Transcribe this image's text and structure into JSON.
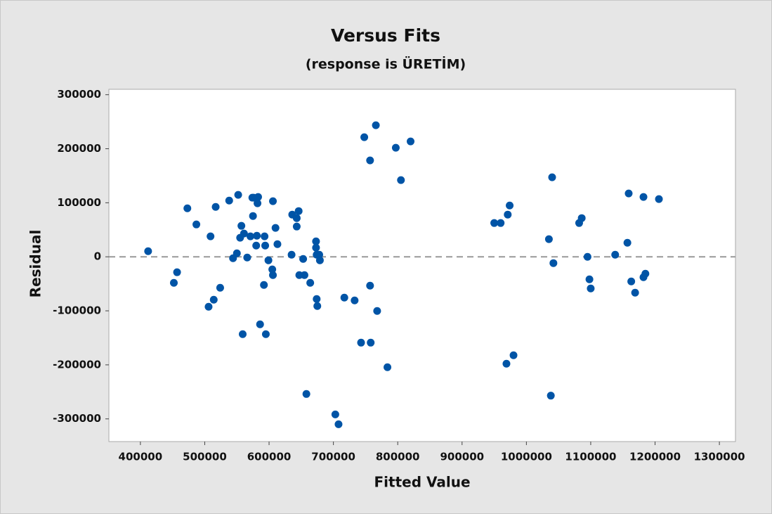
{
  "chart_data": {
    "type": "scatter",
    "title": "Versus Fits",
    "subtitle": "(response is ÜRETİM)",
    "x_label": "Fitted Value",
    "y_label": "Residual",
    "color": "#0054a6",
    "reference_line": 0,
    "xlim": [
      351000,
      1325000
    ],
    "ylim": [
      -342000,
      310000
    ],
    "xticks": [
      400000,
      500000,
      600000,
      700000,
      800000,
      900000,
      1000000,
      1100000,
      1200000,
      1300000
    ],
    "yticks": [
      -300000,
      -200000,
      -100000,
      0,
      100000,
      200000,
      300000
    ],
    "x": [
      412000,
      452000,
      457000,
      473000,
      487000,
      506000,
      509000,
      514000,
      517000,
      524000,
      538000,
      544000,
      552000,
      550000,
      555000,
      557000,
      559000,
      561000,
      566000,
      571000,
      574000,
      575000,
      576000,
      580000,
      581000,
      582000,
      583000,
      586000,
      592000,
      593000,
      594000,
      595000,
      599000,
      605000,
      606000,
      606000,
      610000,
      613000,
      635000,
      636000,
      643000,
      643000,
      646000,
      647000,
      653000,
      655000,
      658000,
      664000,
      673000,
      673000,
      674000,
      674000,
      675000,
      678000,
      679000,
      703000,
      708000,
      717000,
      733000,
      743000,
      748000,
      757000,
      757000,
      758000,
      766000,
      768000,
      784000,
      797000,
      805000,
      820000,
      950000,
      960000,
      969000,
      971000,
      974000,
      980000,
      1035000,
      1038000,
      1040000,
      1042000,
      1082000,
      1086000,
      1095000,
      1098000,
      1100000,
      1138000,
      1157000,
      1159000,
      1163000,
      1169000,
      1182000,
      1182000,
      1185000,
      1206000
    ],
    "values": [
      10400,
      -48200,
      -28600,
      89800,
      59900,
      -92400,
      37800,
      -79400,
      92400,
      -57300,
      104000,
      -2600,
      114600,
      6500,
      35200,
      57300,
      -143200,
      43000,
      -1300,
      37800,
      109400,
      75500,
      109400,
      20800,
      39000,
      99000,
      110700,
      -125000,
      -52100,
      37800,
      20800,
      -143200,
      -6500,
      -23400,
      -33900,
      102900,
      53400,
      23400,
      3900,
      78100,
      71600,
      56000,
      84600,
      -33900,
      -3900,
      -33900,
      -253900,
      -48200,
      28600,
      16900,
      3900,
      -78100,
      -91100,
      3900,
      -6500,
      -291700,
      -309900,
      -75500,
      -80700,
      -158900,
      221400,
      178400,
      -53400,
      -158900,
      243500,
      -100300,
      -204400,
      201800,
      141900,
      213500,
      62500,
      62500,
      -197900,
      78100,
      95000,
      -182300,
      32600,
      -257000,
      147100,
      -11700,
      62500,
      71600,
      0,
      -41700,
      -58600,
      3900,
      26000,
      117200,
      -45600,
      -66400,
      -37800,
      110700,
      -31300,
      106800
    ]
  }
}
